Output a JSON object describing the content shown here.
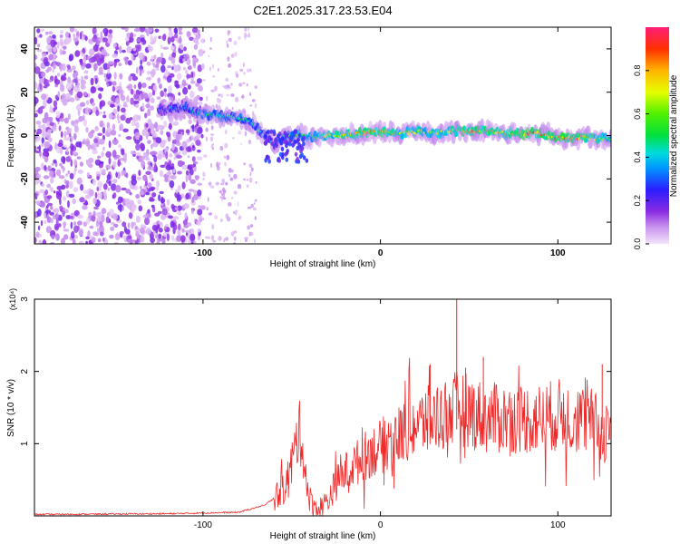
{
  "title": "C2E1.2025.317.23.53.E04",
  "chart_data": [
    {
      "type": "heatmap",
      "xlabel": "Height of straight line (km)",
      "ylabel": "Frequency (Hz)",
      "xlim": [
        -195,
        130
      ],
      "ylim": [
        -50,
        50
      ],
      "xticks": [
        -100,
        0,
        100
      ],
      "yticks": [
        -40,
        -20,
        0,
        20,
        40
      ],
      "colorbar": {
        "label": "Normalized spectral amplitude",
        "range": [
          0,
          1
        ],
        "ticks": [
          "0.0",
          "0.2",
          "0.4",
          "0.6",
          "0.8"
        ],
        "colors": [
          "#f0c8f8",
          "#8a2be2",
          "#1e1eff",
          "#00c8ff",
          "#00ff50",
          "#c8ff00",
          "#ffd200",
          "#ff6400",
          "#ff0000",
          "#ff1e64"
        ]
      },
      "ridge": {
        "x": [
          -125,
          -110,
          -100,
          -90,
          -80,
          -75,
          -70,
          -65,
          -60,
          -55,
          -50,
          -45,
          -40,
          -30,
          -20,
          -10,
          0,
          10,
          20,
          30,
          40,
          50,
          60,
          70,
          80,
          90,
          100,
          110,
          120,
          130
        ],
        "y": [
          12,
          13,
          10,
          9,
          8,
          7,
          4,
          0,
          -4,
          -1,
          0,
          0,
          -1,
          0,
          0,
          1,
          2,
          1,
          2,
          1,
          2,
          2,
          2,
          1,
          1,
          1,
          -1,
          -1,
          -1,
          -2
        ],
        "amplitude": [
          0.25,
          0.4,
          0.5,
          0.5,
          0.5,
          0.45,
          0.5,
          0.4,
          0.35,
          0.4,
          0.55,
          0.6,
          0.6,
          0.7,
          0.75,
          0.8,
          0.8,
          0.75,
          0.7,
          0.7,
          0.75,
          0.85,
          0.8,
          0.8,
          0.9,
          0.85,
          0.9,
          0.85,
          0.75,
          0.6
        ]
      },
      "noise_region": [
        -195,
        -100
      ],
      "sparse_region": [
        -100,
        -70
      ]
    },
    {
      "type": "line",
      "xlabel": "Height of straight line (km)",
      "ylabel": "SNR (10 * v/v)",
      "yscale_note": "(x10⁴)",
      "xlim": [
        -195,
        130
      ],
      "ylim": [
        0,
        3
      ],
      "xticks": [
        -100,
        0,
        100
      ],
      "yticks": [
        1,
        2,
        3
      ],
      "series": [
        {
          "name": "SNR",
          "color": "#ee2a2a",
          "x": [
            -195,
            -120,
            -80,
            -65,
            -55,
            -50,
            -46,
            -44,
            -42,
            -40,
            -38,
            -35,
            -30,
            -25,
            -20,
            -15,
            -10,
            -5,
            0,
            5,
            10,
            15,
            20,
            25,
            30,
            35,
            40,
            45,
            50,
            55,
            60,
            70,
            80,
            90,
            100,
            110,
            120,
            125,
            130
          ],
          "y": [
            0.02,
            0.03,
            0.05,
            0.15,
            0.35,
            0.7,
            1.2,
            1.0,
            0.55,
            0.25,
            0.15,
            0.1,
            0.2,
            0.45,
            0.6,
            0.7,
            0.8,
            0.9,
            0.95,
            1.05,
            1.1,
            1.2,
            1.25,
            1.3,
            1.35,
            1.4,
            1.45,
            1.5,
            1.45,
            1.4,
            1.35,
            1.35,
            1.35,
            1.35,
            1.4,
            1.35,
            1.3,
            1.1,
            1.3
          ]
        }
      ],
      "spikes": [
        {
          "x": 43,
          "y": 3.0
        },
        {
          "x": 58,
          "y": 2.2
        },
        {
          "x": 28,
          "y": 2.1
        },
        {
          "x": 48,
          "y": 2.05
        },
        {
          "x": 125,
          "y": 2.1
        }
      ]
    }
  ]
}
